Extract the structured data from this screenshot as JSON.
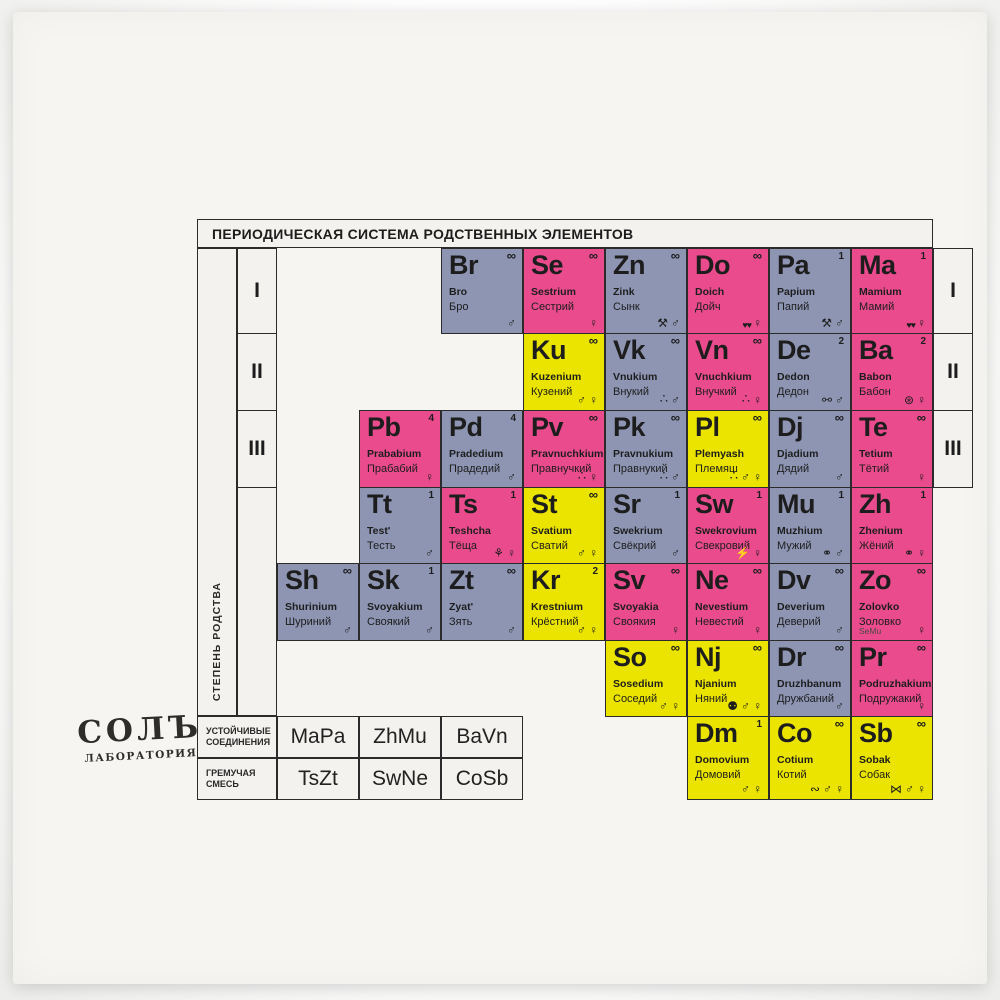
{
  "title": "ПЕРИОДИЧЕСКАЯ СИСТЕМА РОДСТВЕННЫХ ЭЛЕМЕНТОВ",
  "side": {
    "axis_label": "СТЕПЕНЬ РОДСТВА",
    "left_numerals": [
      "I",
      "II",
      "III"
    ],
    "right_numerals": [
      "I",
      "II",
      "III"
    ]
  },
  "logo": {
    "name": "СОЛЪ",
    "sub": "ЛАБОРАТОРИЯ"
  },
  "colors": {
    "pink": "#e94b8d",
    "blue": "#8d95b3",
    "yellow": "#ebe400",
    "card": "#f6f5f1",
    "line": "#2b2b2b"
  },
  "legend": {
    "stable_label": "УСТОЙЧИВЫЕ СОЕДИНЕНИЯ",
    "stable": [
      "MaPa",
      "ZhMu",
      "BaVn"
    ],
    "explosive_label": "ГРЕМУЧАЯ СМЕСЬ",
    "explosive": [
      "TsZt",
      "SwNe",
      "CoSb"
    ]
  },
  "elements": [
    {
      "symbol": "Br",
      "latin": "Bro",
      "cyrillic": "Бро",
      "value": "∞",
      "color": "blue",
      "icons": [
        "male"
      ],
      "row": 0,
      "col": 2
    },
    {
      "symbol": "Se",
      "latin": "Sestrium",
      "cyrillic": "Сестрий",
      "value": "∞",
      "color": "pink",
      "icons": [
        "female"
      ],
      "row": 0,
      "col": 3
    },
    {
      "symbol": "Zn",
      "latin": "Zink",
      "cyrillic": "Сынк",
      "value": "∞",
      "color": "blue",
      "icons": [
        "tools",
        "male"
      ],
      "row": 0,
      "col": 4
    },
    {
      "symbol": "Do",
      "latin": "Doich",
      "cyrillic": "Дойч",
      "value": "∞",
      "color": "pink",
      "icons": [
        "hearts",
        "female"
      ],
      "row": 0,
      "col": 5
    },
    {
      "symbol": "Pa",
      "latin": "Papium",
      "cyrillic": "Папий",
      "value": "1",
      "color": "blue",
      "icons": [
        "tools",
        "male"
      ],
      "row": 0,
      "col": 6
    },
    {
      "symbol": "Ma",
      "latin": "Mamium",
      "cyrillic": "Мамий",
      "value": "1",
      "color": "pink",
      "icons": [
        "hearts",
        "female"
      ],
      "row": 0,
      "col": 7
    },
    {
      "symbol": "Ku",
      "latin": "Kuzenium",
      "cyrillic": "Кузений",
      "value": "∞",
      "color": "yellow",
      "icons": [
        "male",
        "female"
      ],
      "row": 1,
      "col": 3
    },
    {
      "symbol": "Vk",
      "latin": "Vnukium",
      "cyrillic": "Внукий",
      "value": "∞",
      "color": "blue",
      "icons": [
        "balls",
        "male"
      ],
      "row": 1,
      "col": 4
    },
    {
      "symbol": "Vn",
      "latin": "Vnuchkium",
      "cyrillic": "Внучкий",
      "value": "∞",
      "color": "pink",
      "icons": [
        "balls",
        "female"
      ],
      "row": 1,
      "col": 5
    },
    {
      "symbol": "De",
      "latin": "Dedon",
      "cyrillic": "Дедон",
      "value": "2",
      "color": "blue",
      "icons": [
        "glasses",
        "male"
      ],
      "row": 1,
      "col": 6
    },
    {
      "symbol": "Ba",
      "latin": "Babon",
      "cyrillic": "Бабон",
      "value": "2",
      "color": "pink",
      "icons": [
        "yarn",
        "female"
      ],
      "row": 1,
      "col": 7
    },
    {
      "symbol": "Pb",
      "latin": "Prababium",
      "cyrillic": "Прабабий",
      "value": "4",
      "color": "pink",
      "icons": [
        "female"
      ],
      "row": 2,
      "col": 1
    },
    {
      "symbol": "Pd",
      "latin": "Pradedium",
      "cyrillic": "Прадедий",
      "value": "4",
      "color": "blue",
      "icons": [
        "male"
      ],
      "row": 2,
      "col": 2
    },
    {
      "symbol": "Pv",
      "latin": "Pravnuchkium",
      "cyrillic": "Правнучкий",
      "value": "∞",
      "color": "pink",
      "icons": [
        "balls",
        "female"
      ],
      "row": 2,
      "col": 3
    },
    {
      "symbol": "Pk",
      "latin": "Pravnukium",
      "cyrillic": "Правнукий",
      "value": "∞",
      "color": "blue",
      "icons": [
        "balls",
        "male"
      ],
      "row": 2,
      "col": 4
    },
    {
      "symbol": "Pl",
      "latin": "Plemyash",
      "cyrillic": "Племяш",
      "value": "∞",
      "color": "yellow",
      "icons": [
        "balls",
        "male",
        "female"
      ],
      "row": 2,
      "col": 5
    },
    {
      "symbol": "Dj",
      "latin": "Djadium",
      "cyrillic": "Дядий",
      "value": "∞",
      "color": "blue",
      "icons": [
        "male"
      ],
      "row": 2,
      "col": 6
    },
    {
      "symbol": "Te",
      "latin": "Tetium",
      "cyrillic": "Тётий",
      "value": "∞",
      "color": "pink",
      "icons": [
        "female"
      ],
      "row": 2,
      "col": 7
    },
    {
      "symbol": "Tt",
      "latin": "Test'",
      "cyrillic": "Тесть",
      "value": "1",
      "color": "blue",
      "icons": [
        "male"
      ],
      "row": 3,
      "col": 1
    },
    {
      "symbol": "Ts",
      "latin": "Teshcha",
      "cyrillic": "Тёща",
      "value": "1",
      "color": "pink",
      "icons": [
        "flower",
        "female"
      ],
      "row": 3,
      "col": 2
    },
    {
      "symbol": "St",
      "latin": "Svatium",
      "cyrillic": "Сватий",
      "value": "∞",
      "color": "yellow",
      "icons": [
        "male",
        "female"
      ],
      "row": 3,
      "col": 3
    },
    {
      "symbol": "Sr",
      "latin": "Swekrium",
      "cyrillic": "Свёкрий",
      "value": "1",
      "color": "blue",
      "icons": [
        "male"
      ],
      "row": 3,
      "col": 4
    },
    {
      "symbol": "Sw",
      "latin": "Swekrovium",
      "cyrillic": "Свекровий",
      "value": "1",
      "color": "pink",
      "icons": [
        "lightning",
        "female"
      ],
      "row": 3,
      "col": 5
    },
    {
      "symbol": "Mu",
      "latin": "Muzhium",
      "cyrillic": "Мужий",
      "value": "1",
      "color": "blue",
      "icons": [
        "rings",
        "male"
      ],
      "row": 3,
      "col": 6
    },
    {
      "symbol": "Zh",
      "latin": "Zhenium",
      "cyrillic": "Жёний",
      "value": "1",
      "color": "pink",
      "icons": [
        "rings",
        "female"
      ],
      "row": 3,
      "col": 7
    },
    {
      "symbol": "Sh",
      "latin": "Shurinium",
      "cyrillic": "Шуриний",
      "value": "∞",
      "color": "blue",
      "icons": [
        "male"
      ],
      "row": 4,
      "col": 0
    },
    {
      "symbol": "Sk",
      "latin": "Svoyakium",
      "cyrillic": "Своякий",
      "value": "1",
      "color": "blue",
      "icons": [
        "male"
      ],
      "row": 4,
      "col": 1
    },
    {
      "symbol": "Zt",
      "latin": "Zyat'",
      "cyrillic": "Зять",
      "value": "∞",
      "color": "blue",
      "icons": [
        "male"
      ],
      "row": 4,
      "col": 2
    },
    {
      "symbol": "Kr",
      "latin": "Krestnium",
      "cyrillic": "Крёстний",
      "value": "2",
      "color": "yellow",
      "icons": [
        "male",
        "female"
      ],
      "row": 4,
      "col": 3
    },
    {
      "symbol": "Sv",
      "latin": "Svoyakia",
      "cyrillic": "Своякия",
      "value": "∞",
      "color": "pink",
      "icons": [
        "female"
      ],
      "row": 4,
      "col": 4
    },
    {
      "symbol": "Ne",
      "latin": "Nevestium",
      "cyrillic": "Невестий",
      "value": "∞",
      "color": "pink",
      "icons": [
        "female"
      ],
      "row": 4,
      "col": 5
    },
    {
      "symbol": "Dv",
      "latin": "Deverium",
      "cyrillic": "Деверий",
      "value": "∞",
      "color": "blue",
      "icons": [
        "male"
      ],
      "row": 4,
      "col": 6
    },
    {
      "symbol": "Zo",
      "latin": "Zolovko",
      "cyrillic": "Золовко",
      "value": "∞",
      "color": "pink",
      "icons": [
        "female"
      ],
      "note": "SeMu",
      "row": 4,
      "col": 7
    },
    {
      "symbol": "So",
      "latin": "Sosedium",
      "cyrillic": "Соседий",
      "value": "∞",
      "color": "yellow",
      "icons": [
        "male",
        "female"
      ],
      "row": 5,
      "col": 4
    },
    {
      "symbol": "Nj",
      "latin": "Njanium",
      "cyrillic": "Няний",
      "value": "∞",
      "color": "yellow",
      "icons": [
        "pram",
        "male",
        "female"
      ],
      "row": 5,
      "col": 5
    },
    {
      "symbol": "Dr",
      "latin": "Druzhbanum",
      "cyrillic": "Дружбаний",
      "value": "∞",
      "color": "blue",
      "icons": [
        "male"
      ],
      "row": 5,
      "col": 6
    },
    {
      "symbol": "Pr",
      "latin": "Podruzhakium",
      "cyrillic": "Подружакий",
      "value": "∞",
      "color": "pink",
      "icons": [
        "female"
      ],
      "row": 5,
      "col": 7
    },
    {
      "symbol": "Dm",
      "latin": "Domovium",
      "cyrillic": "Домовий",
      "value": "1",
      "color": "yellow",
      "icons": [
        "male",
        "female"
      ],
      "row": 6,
      "col": 5
    },
    {
      "symbol": "Co",
      "latin": "Cotium",
      "cyrillic": "Котий",
      "value": "∞",
      "color": "yellow",
      "icons": [
        "mouse",
        "male",
        "female"
      ],
      "row": 6,
      "col": 6
    },
    {
      "symbol": "Sb",
      "latin": "Sobak",
      "cyrillic": "Собак",
      "value": "∞",
      "color": "yellow",
      "icons": [
        "bone",
        "male",
        "female"
      ],
      "row": 6,
      "col": 7
    }
  ]
}
